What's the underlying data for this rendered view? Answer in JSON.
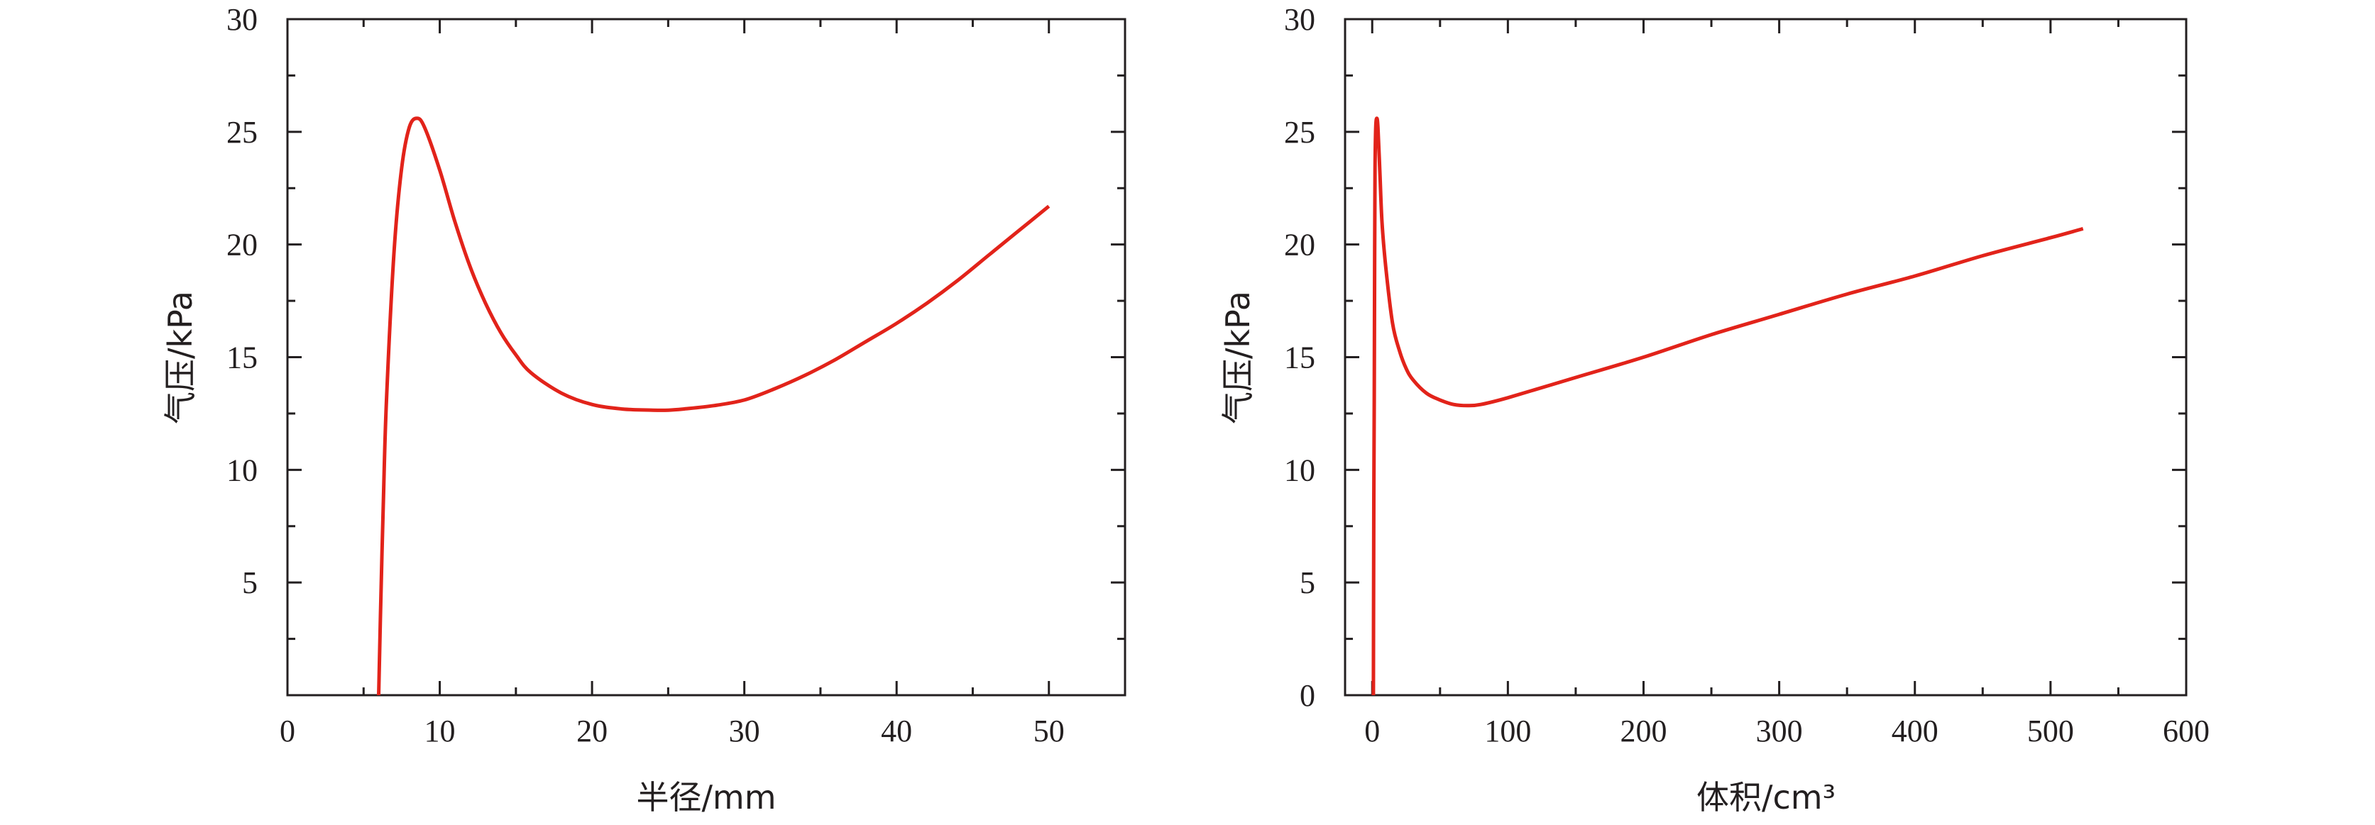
{
  "colors": {
    "curve": "#e2231a",
    "axis": "#231f20",
    "background": "#ffffff"
  },
  "chart_data": [
    {
      "type": "line",
      "xlabel": "半径/mm",
      "ylabel": "气压/kPa",
      "xlim": [
        0,
        55
      ],
      "ylim": [
        0,
        30
      ],
      "xticks": [
        0,
        10,
        20,
        30,
        40,
        50
      ],
      "xtick_labels": [
        "0",
        "10",
        "20",
        "30",
        "40",
        "50"
      ],
      "yticks": [
        0,
        5,
        10,
        15,
        20,
        25,
        30
      ],
      "ytick_labels": [
        "",
        "5",
        "10",
        "15",
        "20",
        "25",
        "30"
      ],
      "grid": false,
      "series": [
        {
          "x": [
            5.99,
            6.1,
            6.3,
            6.5,
            7.0,
            7.5,
            8.0,
            8.5,
            9.0,
            10,
            11,
            12,
            13,
            14,
            15,
            16,
            18,
            20,
            22,
            24,
            25,
            26,
            28,
            30,
            32,
            34,
            36,
            38,
            40,
            42,
            44,
            46,
            48,
            50
          ],
          "y": [
            0,
            3.4,
            8.7,
            13.1,
            19.7,
            23.4,
            25.2,
            25.6,
            25.2,
            23.3,
            21.0,
            19.0,
            17.4,
            16.1,
            15.1,
            14.3,
            13.4,
            12.9,
            12.7,
            12.65,
            12.65,
            12.7,
            12.85,
            13.1,
            13.6,
            14.2,
            14.9,
            15.7,
            16.5,
            17.4,
            18.4,
            19.5,
            20.6,
            21.7
          ]
        }
      ]
    },
    {
      "type": "line",
      "xlabel": "体积/cm³",
      "ylabel": "气压/kPa",
      "xlim": [
        -20,
        600
      ],
      "ylim": [
        0,
        30
      ],
      "xticks": [
        0,
        100,
        200,
        300,
        400,
        500,
        600
      ],
      "xtick_labels": [
        "0",
        "100",
        "200",
        "300",
        "400",
        "500",
        "600"
      ],
      "yticks": [
        0,
        5,
        10,
        15,
        20,
        25,
        30
      ],
      "ytick_labels": [
        "0",
        "5",
        "10",
        "15",
        "20",
        "25",
        "30"
      ],
      "grid": false,
      "series": [
        {
          "x": [
            0.9,
            1.0,
            1.2,
            1.5,
            1.8,
            2.1,
            2.6,
            3.4,
            4.2,
            5.6,
            7.2,
            10,
            15,
            20,
            25,
            30,
            40,
            50,
            60,
            70,
            80,
            100,
            150,
            200,
            250,
            300,
            350,
            400,
            450,
            500,
            524
          ],
          "y": [
            0,
            3.4,
            8.7,
            13.1,
            19.7,
            23.4,
            25.2,
            25.6,
            25.2,
            23.3,
            21.0,
            19.0,
            16.5,
            15.3,
            14.5,
            14.0,
            13.4,
            13.1,
            12.9,
            12.85,
            12.9,
            13.2,
            14.1,
            15.0,
            16.0,
            16.9,
            17.8,
            18.6,
            19.5,
            20.3,
            20.7
          ]
        }
      ]
    }
  ]
}
